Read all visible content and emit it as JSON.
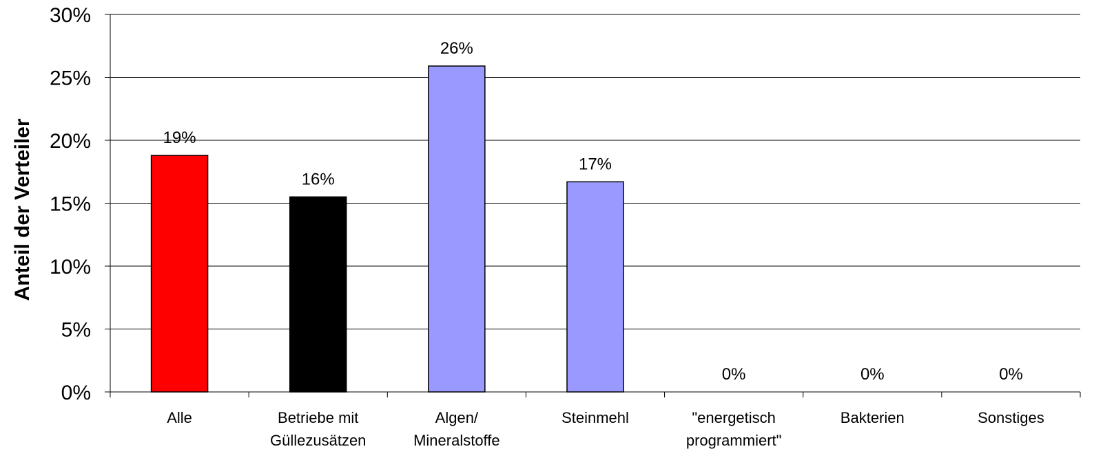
{
  "chart_data": {
    "type": "bar",
    "title": "",
    "xlabel": "",
    "ylabel": "Anteil der Verteiler",
    "ylim": [
      0,
      30
    ],
    "y_tick_values": [
      0,
      5,
      10,
      15,
      20,
      25,
      30
    ],
    "y_tick_suffix": "%",
    "grid": true,
    "legend": false,
    "categories": [
      [
        "Alle"
      ],
      [
        "Betriebe mit",
        "Güllezusätzen"
      ],
      [
        "Algen/",
        "Mineralstoffe"
      ],
      [
        "Steinmehl"
      ],
      [
        "\"energetisch",
        "programmiert\""
      ],
      [
        "Bakterien"
      ],
      [
        "Sonstiges"
      ]
    ],
    "values": [
      18.8,
      15.5,
      25.9,
      16.7,
      0,
      0,
      0
    ],
    "data_labels": [
      "19%",
      "16%",
      "26%",
      "17%",
      "0%",
      "0%",
      "0%"
    ],
    "bar_colors": [
      "#ff0000",
      "#000000",
      "#9999ff",
      "#9999ff",
      "#9999ff",
      "#9999ff",
      "#9999ff"
    ]
  }
}
